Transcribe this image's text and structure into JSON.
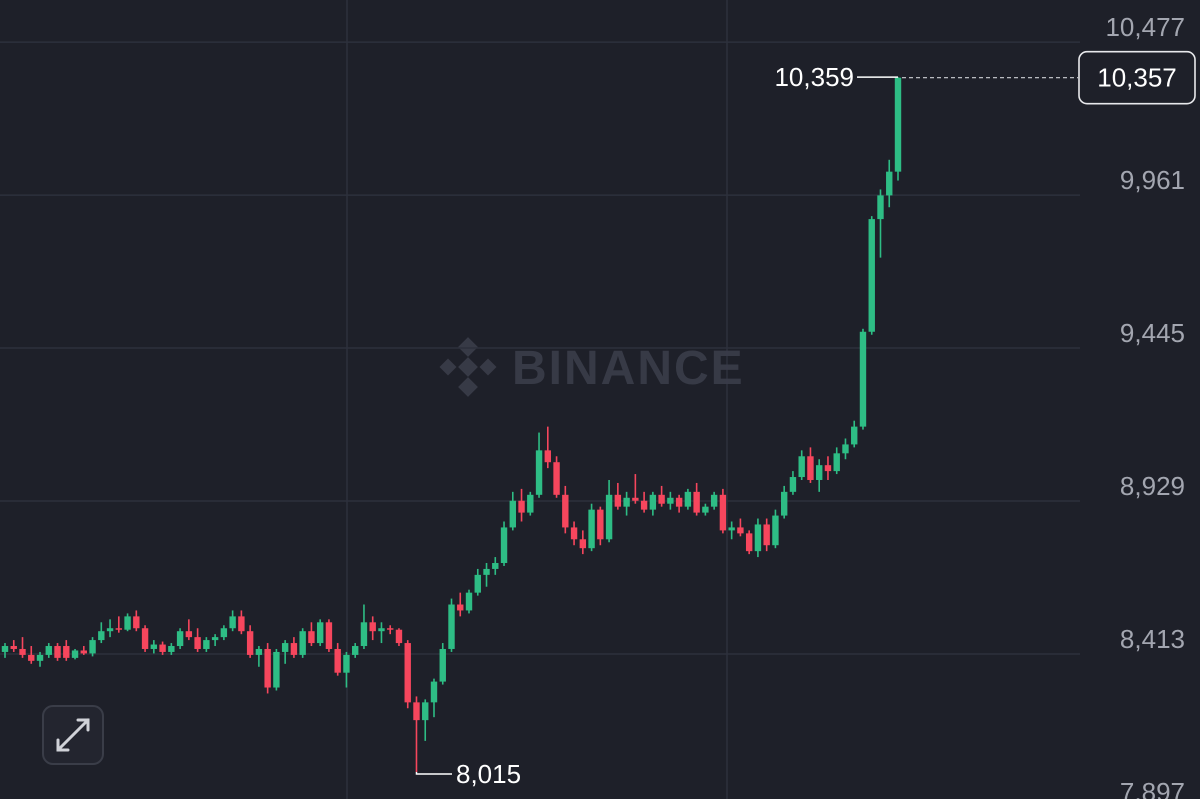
{
  "chart_data": {
    "type": "candlestick",
    "watermark": "BINANCE",
    "up_color": "#2ebd85",
    "down_color": "#f6465d",
    "grid": true,
    "ylim": [
      7924,
      10619
    ],
    "yticks": [
      {
        "value": 10477,
        "label": "10,477"
      },
      {
        "value": 9961,
        "label": "9,961"
      },
      {
        "value": 9445,
        "label": "9,445"
      },
      {
        "value": 8929,
        "label": "8,929"
      },
      {
        "value": 8413,
        "label": "8,413"
      },
      {
        "value": 7897,
        "label": "7,897"
      }
    ],
    "high_marker": {
      "value": 10359,
      "label": "10,359"
    },
    "low_marker": {
      "value": 8015,
      "label": "8,015"
    },
    "last_price": {
      "value": 10357,
      "label": "10,357"
    },
    "open": [
      8420,
      8440,
      8430,
      8410,
      8390,
      8410,
      8440,
      8440,
      8400,
      8425,
      8415,
      8460,
      8490,
      8500,
      8495,
      8540,
      8500,
      8430,
      8445,
      8420,
      8440,
      8490,
      8470,
      8430,
      8460,
      8470,
      8500,
      8540,
      8490,
      8410,
      8430,
      8300,
      8420,
      8450,
      8410,
      8490,
      8450,
      8520,
      8430,
      8350,
      8410,
      8440,
      8520,
      8490,
      8500,
      8495,
      8450,
      8250,
      8190,
      8250,
      8320,
      8430,
      8580,
      8560,
      8620,
      8680,
      8700,
      8720,
      8840,
      8930,
      8890,
      8950,
      9100,
      9060,
      8950,
      8840,
      8800,
      8770,
      8900,
      8800,
      8950,
      8910,
      8940,
      8930,
      8900,
      8950,
      8920,
      8940,
      8910,
      8960,
      8890,
      8910,
      8950,
      8830,
      8840,
      8820,
      8760,
      8850,
      8780,
      8880,
      8960,
      9010,
      9080,
      9000,
      9050,
      9030,
      9090,
      9120,
      9180,
      9500,
      9880,
      9960,
      10040
    ],
    "high": [
      8450,
      8460,
      8470,
      8440,
      8420,
      8450,
      8450,
      8460,
      8430,
      8440,
      8470,
      8520,
      8530,
      8540,
      8550,
      8560,
      8510,
      8460,
      8455,
      8450,
      8500,
      8530,
      8500,
      8470,
      8480,
      8510,
      8560,
      8560,
      8510,
      8440,
      8450,
      8430,
      8460,
      8470,
      8500,
      8520,
      8530,
      8530,
      8450,
      8420,
      8450,
      8580,
      8540,
      8520,
      8510,
      8500,
      8460,
      8270,
      8260,
      8330,
      8450,
      8600,
      8620,
      8630,
      8700,
      8720,
      8740,
      8860,
      8960,
      8970,
      8960,
      9160,
      9180,
      9080,
      8980,
      8860,
      8830,
      8920,
      8910,
      9000,
      8990,
      8960,
      9020,
      8960,
      8960,
      8980,
      8960,
      8950,
      8970,
      8990,
      8920,
      8960,
      8970,
      8860,
      8870,
      8830,
      8870,
      8870,
      8900,
      8980,
      9030,
      9100,
      9110,
      9070,
      9080,
      9110,
      9140,
      9200,
      9510,
      9890,
      9980,
      10080,
      10359
    ],
    "low": [
      8400,
      8420,
      8400,
      8380,
      8370,
      8400,
      8390,
      8390,
      8395,
      8410,
      8405,
      8450,
      8470,
      8485,
      8490,
      8490,
      8420,
      8415,
      8410,
      8410,
      8430,
      8460,
      8420,
      8420,
      8440,
      8460,
      8490,
      8480,
      8400,
      8370,
      8280,
      8290,
      8380,
      8400,
      8400,
      8440,
      8440,
      8420,
      8340,
      8300,
      8400,
      8430,
      8460,
      8450,
      8480,
      8440,
      8230,
      8015,
      8120,
      8200,
      8310,
      8420,
      8540,
      8550,
      8610,
      8640,
      8680,
      8710,
      8830,
      8860,
      8880,
      8940,
      9040,
      8940,
      8820,
      8780,
      8750,
      8760,
      8780,
      8790,
      8900,
      8880,
      8920,
      8890,
      8880,
      8910,
      8900,
      8890,
      8900,
      8880,
      8880,
      8900,
      8820,
      8800,
      8810,
      8750,
      8740,
      8760,
      8770,
      8870,
      8950,
      9000,
      8990,
      8960,
      9000,
      9020,
      9070,
      9110,
      9170,
      9490,
      9750,
      9920,
      10010
    ],
    "close": [
      8440,
      8430,
      8410,
      8390,
      8410,
      8440,
      8400,
      8400,
      8425,
      8415,
      8460,
      8490,
      8500,
      8495,
      8540,
      8500,
      8430,
      8445,
      8420,
      8440,
      8490,
      8470,
      8430,
      8460,
      8470,
      8500,
      8540,
      8490,
      8410,
      8430,
      8300,
      8420,
      8450,
      8410,
      8490,
      8450,
      8520,
      8430,
      8350,
      8410,
      8440,
      8520,
      8490,
      8500,
      8495,
      8450,
      8250,
      8190,
      8250,
      8320,
      8430,
      8580,
      8560,
      8620,
      8680,
      8700,
      8720,
      8840,
      8930,
      8890,
      8950,
      9100,
      9060,
      8950,
      8840,
      8800,
      8770,
      8900,
      8800,
      8950,
      8910,
      8940,
      8930,
      8900,
      8950,
      8920,
      8940,
      8910,
      8960,
      8890,
      8910,
      8950,
      8830,
      8840,
      8820,
      8760,
      8850,
      8780,
      8880,
      8960,
      9010,
      9080,
      9000,
      9050,
      9030,
      9090,
      9120,
      9180,
      9500,
      9880,
      9960,
      10040,
      10357
    ]
  }
}
